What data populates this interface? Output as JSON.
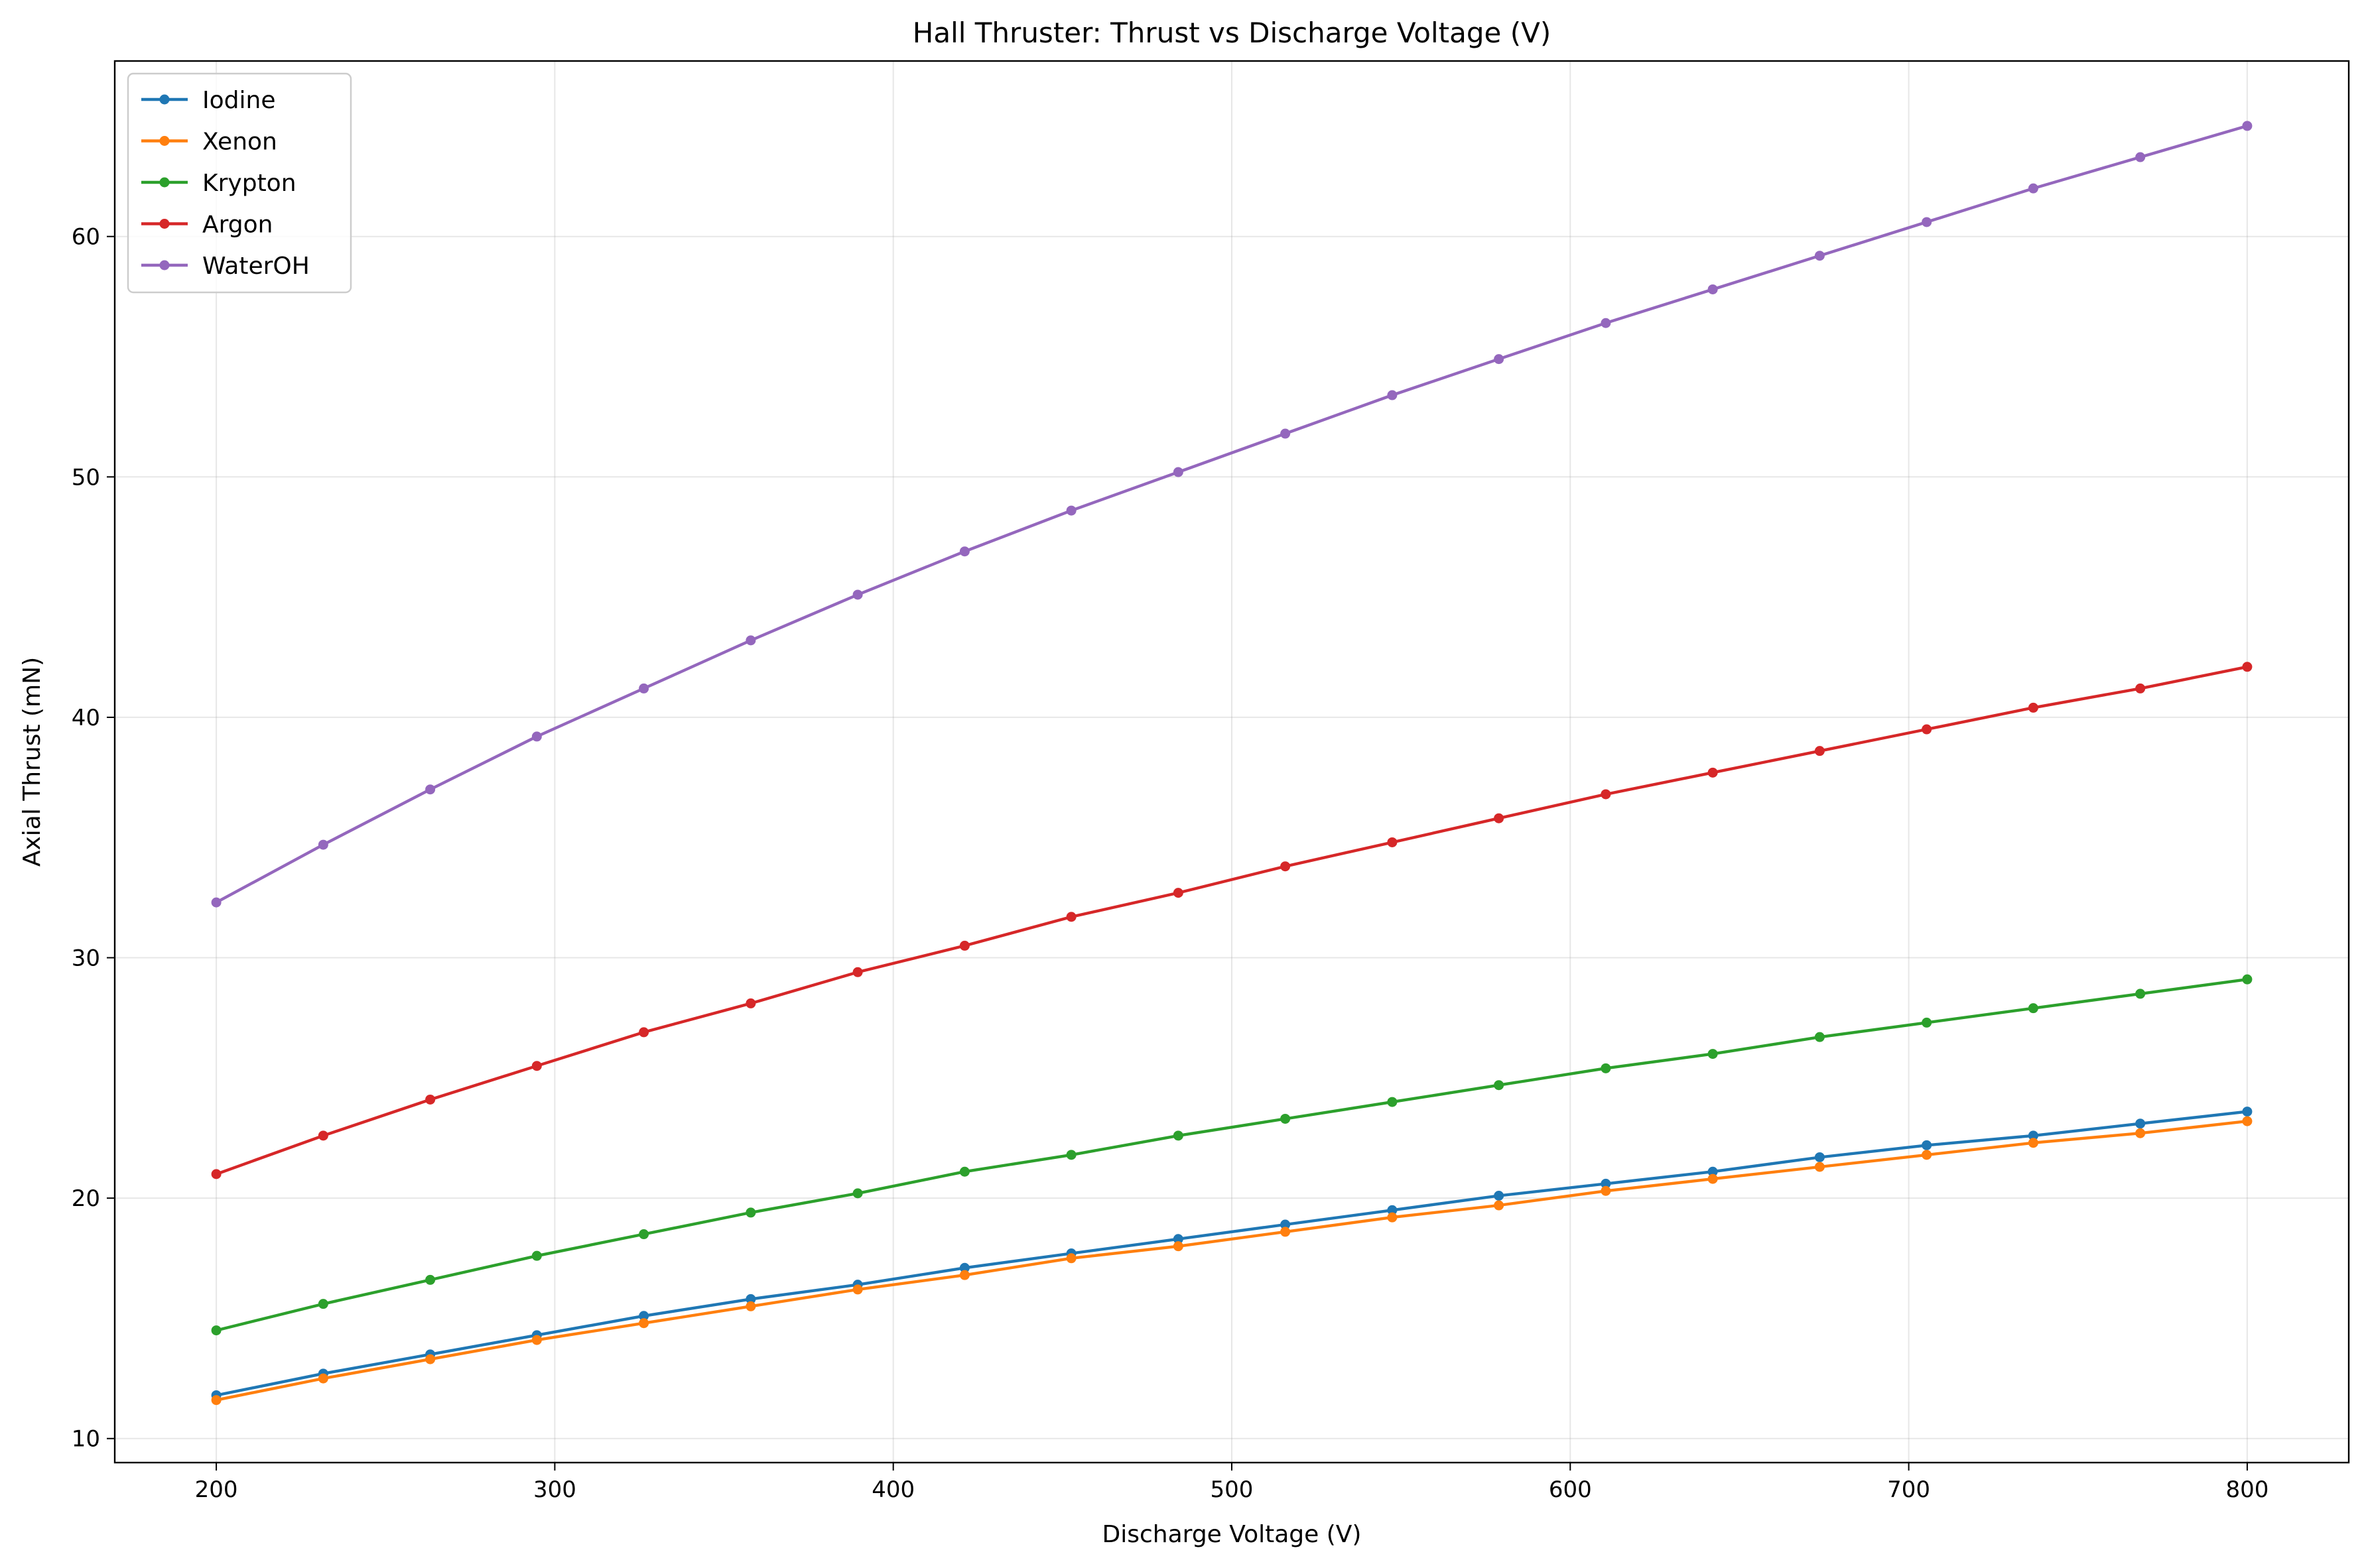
{
  "chart_data": {
    "type": "line",
    "title": "Hall Thruster: Thrust vs Discharge Voltage (V)",
    "xlabel": "Discharge Voltage (V)",
    "ylabel": "Axial Thrust (mN)",
    "xlim": [
      170,
      830
    ],
    "ylim": [
      9.0,
      67.3
    ],
    "xticks": [
      200,
      300,
      400,
      500,
      600,
      700,
      800
    ],
    "yticks": [
      10,
      20,
      30,
      40,
      50,
      60
    ],
    "grid": true,
    "legend_position": "top-left",
    "x": [
      200,
      231.6,
      263.2,
      294.7,
      326.3,
      357.9,
      389.5,
      421.1,
      452.6,
      484.2,
      515.8,
      547.4,
      578.9,
      610.5,
      642.1,
      673.7,
      705.3,
      736.8,
      768.4,
      800
    ],
    "series": [
      {
        "name": "Iodine",
        "color": "#1f77b4",
        "values": [
          11.8,
          12.7,
          13.5,
          14.3,
          15.1,
          15.8,
          16.4,
          17.1,
          17.7,
          18.3,
          18.9,
          19.5,
          20.1,
          20.6,
          21.1,
          21.7,
          22.2,
          22.6,
          23.1,
          23.6
        ]
      },
      {
        "name": "Xenon",
        "color": "#ff7f0e",
        "values": [
          11.6,
          12.5,
          13.3,
          14.1,
          14.8,
          15.5,
          16.2,
          16.8,
          17.5,
          18.0,
          18.6,
          19.2,
          19.7,
          20.3,
          20.8,
          21.3,
          21.8,
          22.3,
          22.7,
          23.2
        ]
      },
      {
        "name": "Krypton",
        "color": "#2ca02c",
        "values": [
          14.5,
          15.6,
          16.6,
          17.6,
          18.5,
          19.4,
          20.2,
          21.1,
          21.8,
          22.6,
          23.3,
          24.0,
          24.7,
          25.4,
          26.0,
          26.7,
          27.3,
          27.9,
          28.5,
          29.1
        ]
      },
      {
        "name": "Argon",
        "color": "#d62728",
        "values": [
          21.0,
          22.6,
          24.1,
          25.5,
          26.9,
          28.1,
          29.4,
          30.5,
          31.7,
          32.7,
          33.8,
          34.8,
          35.8,
          36.8,
          37.7,
          38.6,
          39.5,
          40.4,
          41.2,
          42.1
        ]
      },
      {
        "name": "WaterOH",
        "color": "#9467bd",
        "values": [
          32.3,
          34.7,
          37.0,
          39.2,
          41.2,
          43.2,
          45.1,
          46.9,
          48.6,
          50.2,
          51.8,
          53.4,
          54.9,
          56.4,
          57.8,
          59.2,
          60.6,
          62.0,
          63.3,
          64.6
        ]
      }
    ]
  }
}
